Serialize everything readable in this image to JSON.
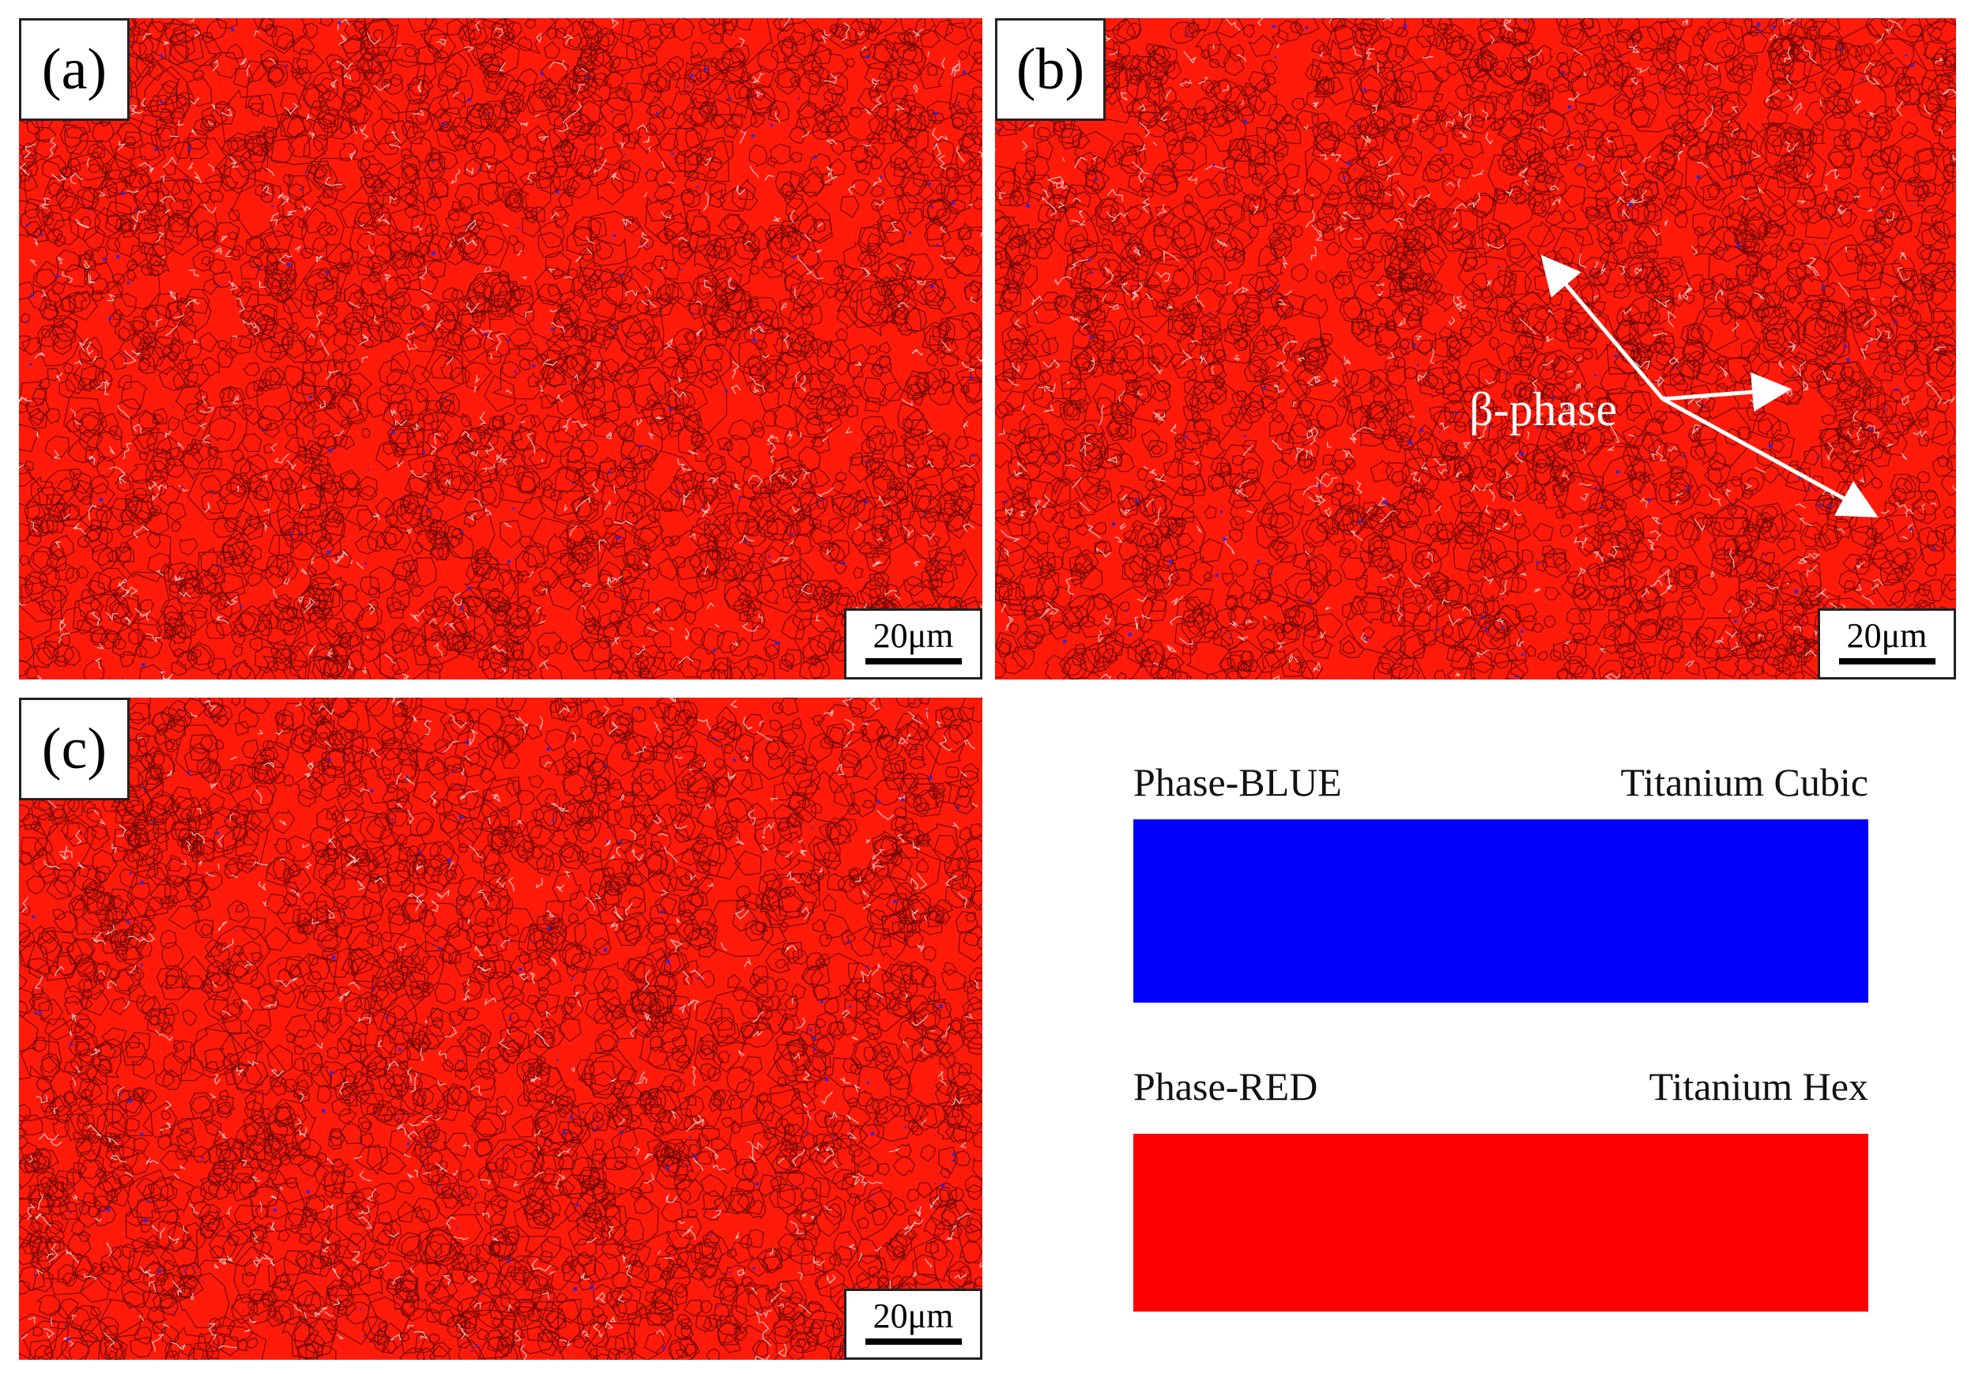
{
  "panels": [
    {
      "id": "a",
      "label": "(a)",
      "scale": "20μm"
    },
    {
      "id": "b",
      "label": "(b)",
      "scale": "20μm"
    },
    {
      "id": "c",
      "label": "(c)",
      "scale": "20μm"
    }
  ],
  "annotation": {
    "label": "β-phase"
  },
  "legend": {
    "blue": {
      "phase": "Phase-BLUE",
      "name": "Titanium Cubic",
      "color": "#0000ff"
    },
    "red": {
      "phase": "Phase-RED",
      "name": "Titanium Hex",
      "color": "#ff0000"
    }
  },
  "colors": {
    "grain": "#ff1a0a",
    "boundary": "#3a0000",
    "low_angle": "#ffd9d9",
    "beta": "#3a22d0"
  }
}
